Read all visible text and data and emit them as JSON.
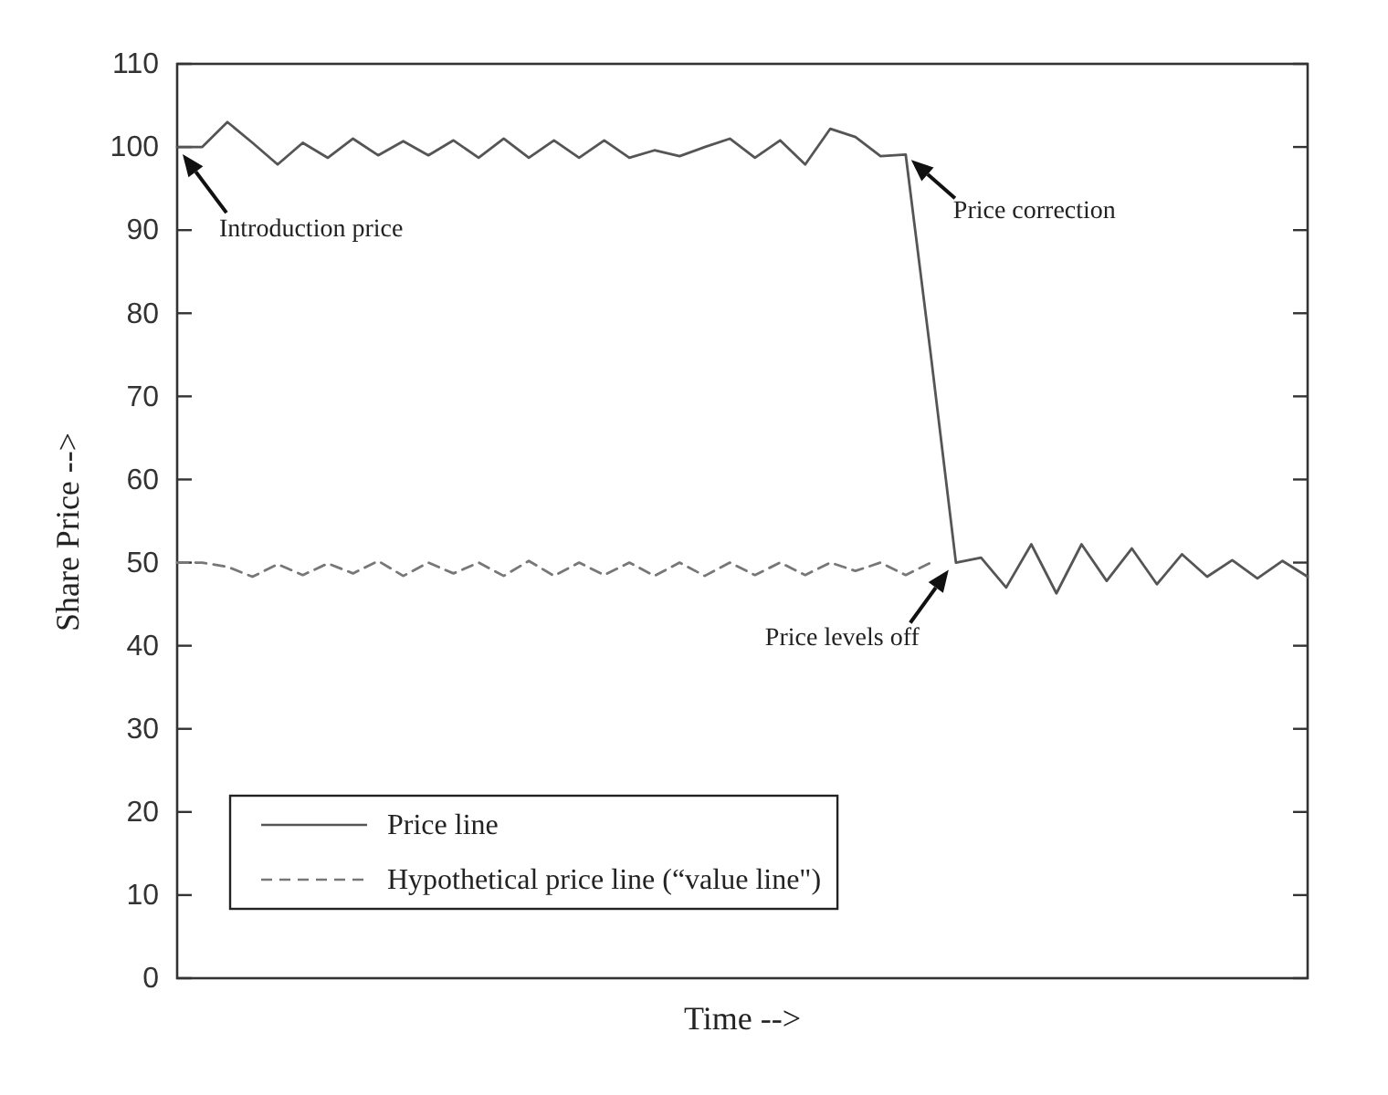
{
  "chart_data": {
    "type": "line",
    "xlabel": "Time -->",
    "ylabel": "Share Price -->",
    "categories": [
      null,
      null,
      null,
      null,
      null,
      null,
      null,
      null,
      null,
      null,
      null,
      null,
      null,
      null,
      null,
      null,
      null,
      null,
      null,
      null,
      null,
      null,
      null,
      null,
      null,
      null,
      null,
      null,
      null,
      null,
      null,
      null,
      null,
      null,
      null,
      null,
      null,
      null,
      null,
      null,
      null,
      null,
      null,
      null,
      null,
      null
    ],
    "series": [
      {
        "name": "Price line",
        "color": "#555555",
        "line_style": "solid",
        "values": [
          100,
          100,
          103,
          100.5,
          97.9,
          100.5,
          98.7,
          101,
          99,
          100.7,
          99,
          100.8,
          98.7,
          101,
          98.7,
          100.8,
          98.7,
          100.8,
          98.7,
          99.6,
          98.9,
          100,
          101,
          98.7,
          100.8,
          97.9,
          102.2,
          101.2,
          98.9,
          99.1,
          75,
          50,
          50.6,
          47,
          52.2,
          46.3,
          52.2,
          47.8,
          51.7,
          47.4,
          51,
          48.3,
          50.3,
          48.1,
          50.2,
          48.3
        ]
      },
      {
        "name": "Hypothetical price line (“value line\")",
        "color": "#777777",
        "line_style": "dashed",
        "values": [
          50,
          50,
          49.5,
          48.3,
          49.8,
          48.5,
          49.9,
          48.7,
          50.2,
          48.4,
          50,
          48.7,
          50,
          48.4,
          50.2,
          48.4,
          50,
          48.5,
          50,
          48.4,
          50,
          48.4,
          50,
          48.5,
          50,
          48.5,
          50,
          49,
          50,
          48.5,
          50,
          null,
          null,
          null,
          null,
          null,
          null,
          null,
          null,
          null,
          null,
          null,
          null,
          null,
          null,
          null
        ]
      }
    ],
    "ylim": [
      0,
      110
    ],
    "yticks": [
      0,
      10,
      20,
      30,
      40,
      50,
      60,
      70,
      80,
      90,
      100,
      110
    ],
    "tick_labels": "y",
    "legend": "bottom left",
    "annotations": [
      {
        "text": "Introduction price",
        "y": 100
      },
      "Price correction",
      {
        "text": "Price levels off",
        "y": 50
      }
    ]
  }
}
